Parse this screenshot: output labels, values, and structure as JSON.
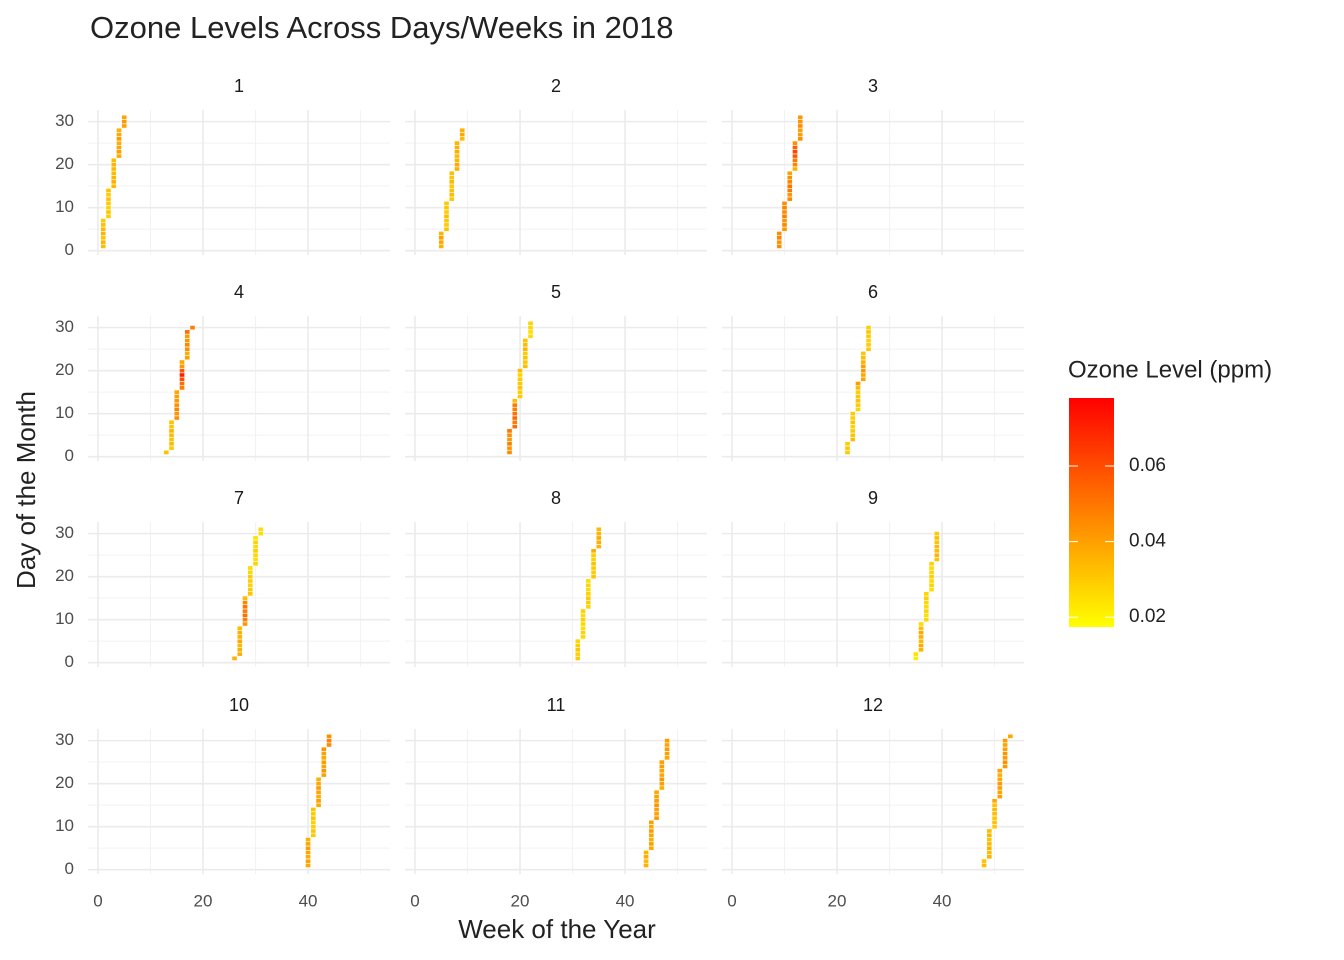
{
  "chart_data": {
    "type": "heatmap",
    "title": "Ozone Levels Across Days/Weeks in 2018",
    "x_label": "Week of the Year",
    "y_label": "Day of the Month",
    "legend_title": "Ozone Level (ppm)",
    "color_low": "#ffff00",
    "color_high": "#ff0000",
    "colorlim": [
      0.0174,
      0.078
    ],
    "colorticks": [
      0.02,
      0.04,
      0.06
    ],
    "xlim": [
      -1.9,
      55.6
    ],
    "xticks": [
      0,
      20,
      40
    ],
    "xminor": [
      10,
      30,
      50
    ],
    "ylim": [
      -1,
      32.7
    ],
    "yticks": [
      0,
      10,
      20,
      30
    ],
    "yminor": [
      5,
      15,
      25
    ],
    "grid": true,
    "panels": [
      {
        "title": "1",
        "x": [
          1,
          1,
          1,
          1,
          1,
          1,
          1,
          2,
          2,
          2,
          2,
          2,
          2,
          2,
          3,
          3,
          3,
          3,
          3,
          3,
          3,
          4,
          4,
          4,
          4,
          4,
          4,
          4,
          5,
          5,
          5
        ],
        "y": [
          1,
          2,
          3,
          4,
          5,
          6,
          7,
          8,
          9,
          10,
          11,
          12,
          13,
          14,
          15,
          16,
          17,
          18,
          19,
          20,
          21,
          22,
          23,
          24,
          25,
          26,
          27,
          28,
          29,
          30,
          31
        ],
        "values": [
          0.033,
          0.035,
          0.031,
          0.036,
          0.034,
          0.032,
          0.03,
          0.029,
          0.031,
          0.028,
          0.03,
          0.032,
          0.029,
          0.031,
          0.034,
          0.036,
          0.035,
          0.033,
          0.034,
          0.035,
          0.033,
          0.038,
          0.04,
          0.039,
          0.037,
          0.041,
          0.038,
          0.036,
          0.04,
          0.042,
          0.039
        ]
      },
      {
        "title": "2",
        "x": [
          5,
          5,
          5,
          5,
          6,
          6,
          6,
          6,
          6,
          6,
          6,
          7,
          7,
          7,
          7,
          7,
          7,
          7,
          8,
          8,
          8,
          8,
          8,
          8,
          8,
          9,
          9,
          9
        ],
        "y": [
          1,
          2,
          3,
          4,
          5,
          6,
          7,
          8,
          9,
          10,
          11,
          12,
          13,
          14,
          15,
          16,
          17,
          18,
          19,
          20,
          21,
          22,
          23,
          24,
          25,
          26,
          27,
          28
        ],
        "values": [
          0.036,
          0.038,
          0.04,
          0.035,
          0.032,
          0.03,
          0.031,
          0.033,
          0.029,
          0.031,
          0.03,
          0.031,
          0.033,
          0.032,
          0.03,
          0.034,
          0.031,
          0.033,
          0.036,
          0.038,
          0.035,
          0.034,
          0.037,
          0.036,
          0.035,
          0.033,
          0.038,
          0.036
        ]
      },
      {
        "title": "3",
        "x": [
          9,
          9,
          9,
          9,
          10,
          10,
          10,
          10,
          10,
          10,
          10,
          11,
          11,
          11,
          11,
          11,
          11,
          11,
          12,
          12,
          12,
          12,
          12,
          12,
          12,
          13,
          13,
          13,
          13,
          13,
          13
        ],
        "y": [
          1,
          2,
          3,
          4,
          5,
          6,
          7,
          8,
          9,
          10,
          11,
          12,
          13,
          14,
          15,
          16,
          17,
          18,
          19,
          20,
          21,
          22,
          23,
          24,
          25,
          26,
          27,
          28,
          29,
          30,
          31
        ],
        "values": [
          0.045,
          0.043,
          0.047,
          0.044,
          0.042,
          0.046,
          0.043,
          0.048,
          0.045,
          0.047,
          0.044,
          0.046,
          0.042,
          0.049,
          0.051,
          0.046,
          0.044,
          0.04,
          0.036,
          0.046,
          0.05,
          0.058,
          0.062,
          0.055,
          0.043,
          0.044,
          0.041,
          0.04,
          0.045,
          0.043,
          0.042
        ]
      },
      {
        "title": "4",
        "x": [
          13,
          14,
          14,
          14,
          14,
          14,
          14,
          14,
          15,
          15,
          15,
          15,
          15,
          15,
          15,
          16,
          16,
          16,
          16,
          16,
          16,
          16,
          17,
          17,
          17,
          17,
          17,
          17,
          17,
          18
        ],
        "y": [
          1,
          2,
          3,
          4,
          5,
          6,
          7,
          8,
          9,
          10,
          11,
          12,
          13,
          14,
          15,
          16,
          17,
          18,
          19,
          20,
          21,
          22,
          23,
          24,
          25,
          26,
          27,
          28,
          29,
          30
        ],
        "values": [
          0.032,
          0.03,
          0.034,
          0.031,
          0.033,
          0.035,
          0.031,
          0.032,
          0.045,
          0.043,
          0.047,
          0.044,
          0.042,
          0.04,
          0.038,
          0.048,
          0.052,
          0.06,
          0.071,
          0.058,
          0.042,
          0.038,
          0.04,
          0.037,
          0.044,
          0.046,
          0.043,
          0.041,
          0.052,
          0.048
        ]
      },
      {
        "title": "5",
        "x": [
          18,
          18,
          18,
          18,
          18,
          18,
          19,
          19,
          19,
          19,
          19,
          19,
          19,
          20,
          20,
          20,
          20,
          20,
          20,
          20,
          21,
          21,
          21,
          21,
          21,
          21,
          21,
          22,
          22,
          22,
          22
        ],
        "y": [
          1,
          2,
          3,
          4,
          5,
          6,
          7,
          8,
          9,
          10,
          11,
          12,
          13,
          14,
          15,
          16,
          17,
          18,
          19,
          20,
          21,
          22,
          23,
          24,
          25,
          26,
          27,
          28,
          29,
          30,
          31
        ],
        "values": [
          0.045,
          0.043,
          0.048,
          0.042,
          0.044,
          0.05,
          0.052,
          0.049,
          0.054,
          0.051,
          0.048,
          0.05,
          0.033,
          0.03,
          0.029,
          0.032,
          0.031,
          0.03,
          0.028,
          0.034,
          0.033,
          0.031,
          0.032,
          0.03,
          0.035,
          0.033,
          0.032,
          0.026,
          0.025,
          0.027,
          0.028
        ]
      },
      {
        "title": "6",
        "x": [
          22,
          22,
          22,
          23,
          23,
          23,
          23,
          23,
          23,
          23,
          24,
          24,
          24,
          24,
          24,
          24,
          24,
          25,
          25,
          25,
          25,
          25,
          25,
          25,
          26,
          26,
          26,
          26,
          26,
          26
        ],
        "y": [
          1,
          2,
          3,
          4,
          5,
          6,
          7,
          8,
          9,
          10,
          11,
          12,
          13,
          14,
          15,
          16,
          17,
          18,
          19,
          20,
          21,
          22,
          23,
          24,
          25,
          26,
          27,
          28,
          29,
          30
        ],
        "values": [
          0.03,
          0.031,
          0.029,
          0.033,
          0.032,
          0.03,
          0.028,
          0.031,
          0.029,
          0.03,
          0.027,
          0.03,
          0.032,
          0.031,
          0.029,
          0.033,
          0.041,
          0.039,
          0.038,
          0.042,
          0.04,
          0.036,
          0.033,
          0.031,
          0.03,
          0.029,
          0.028,
          0.03,
          0.031,
          0.029
        ]
      },
      {
        "title": "7",
        "x": [
          26,
          27,
          27,
          27,
          27,
          27,
          27,
          27,
          28,
          28,
          28,
          28,
          28,
          28,
          28,
          29,
          29,
          29,
          29,
          29,
          29,
          29,
          30,
          30,
          30,
          30,
          30,
          30,
          30,
          31,
          31
        ],
        "y": [
          1,
          2,
          3,
          4,
          5,
          6,
          7,
          8,
          9,
          10,
          11,
          12,
          13,
          14,
          15,
          16,
          17,
          18,
          19,
          20,
          21,
          22,
          23,
          24,
          25,
          26,
          27,
          28,
          29,
          30,
          31
        ],
        "values": [
          0.035,
          0.037,
          0.036,
          0.034,
          0.038,
          0.035,
          0.036,
          0.033,
          0.042,
          0.048,
          0.052,
          0.049,
          0.05,
          0.046,
          0.033,
          0.031,
          0.03,
          0.028,
          0.029,
          0.03,
          0.027,
          0.026,
          0.028,
          0.025,
          0.027,
          0.029,
          0.026,
          0.028,
          0.024,
          0.025,
          0.026
        ]
      },
      {
        "title": "8",
        "x": [
          31,
          31,
          31,
          31,
          31,
          32,
          32,
          32,
          32,
          32,
          32,
          32,
          33,
          33,
          33,
          33,
          33,
          33,
          33,
          34,
          34,
          34,
          34,
          34,
          34,
          34,
          35,
          35,
          35,
          35,
          35
        ],
        "y": [
          1,
          2,
          3,
          4,
          5,
          6,
          7,
          8,
          9,
          10,
          11,
          12,
          13,
          14,
          15,
          16,
          17,
          18,
          19,
          20,
          21,
          22,
          23,
          24,
          25,
          26,
          27,
          28,
          29,
          30,
          31
        ],
        "values": [
          0.03,
          0.028,
          0.031,
          0.029,
          0.027,
          0.026,
          0.028,
          0.025,
          0.027,
          0.029,
          0.026,
          0.028,
          0.027,
          0.029,
          0.03,
          0.028,
          0.026,
          0.027,
          0.025,
          0.031,
          0.029,
          0.03,
          0.032,
          0.028,
          0.029,
          0.037,
          0.035,
          0.036,
          0.038,
          0.035,
          0.034
        ]
      },
      {
        "title": "9",
        "x": [
          35,
          35,
          36,
          36,
          36,
          36,
          36,
          36,
          36,
          37,
          37,
          37,
          37,
          37,
          37,
          37,
          38,
          38,
          38,
          38,
          38,
          38,
          38,
          39,
          39,
          39,
          39,
          39,
          39,
          39
        ],
        "y": [
          1,
          2,
          3,
          4,
          5,
          6,
          7,
          8,
          9,
          10,
          11,
          12,
          13,
          14,
          15,
          16,
          17,
          18,
          19,
          20,
          21,
          22,
          23,
          24,
          25,
          26,
          27,
          28,
          29,
          30
        ],
        "values": [
          0.022,
          0.024,
          0.035,
          0.037,
          0.034,
          0.036,
          0.038,
          0.033,
          0.026,
          0.027,
          0.025,
          0.028,
          0.026,
          0.027,
          0.029,
          0.027,
          0.025,
          0.028,
          0.026,
          0.029,
          0.027,
          0.026,
          0.028,
          0.032,
          0.035,
          0.033,
          0.034,
          0.031,
          0.033,
          0.03
        ]
      },
      {
        "title": "10",
        "x": [
          40,
          40,
          40,
          40,
          40,
          40,
          40,
          41,
          41,
          41,
          41,
          41,
          41,
          41,
          42,
          42,
          42,
          42,
          42,
          42,
          42,
          43,
          43,
          43,
          43,
          43,
          43,
          43,
          44,
          44,
          44
        ],
        "y": [
          1,
          2,
          3,
          4,
          5,
          6,
          7,
          8,
          9,
          10,
          11,
          12,
          13,
          14,
          15,
          16,
          17,
          18,
          19,
          20,
          21,
          22,
          23,
          24,
          25,
          26,
          27,
          28,
          29,
          30,
          31
        ],
        "values": [
          0.038,
          0.04,
          0.037,
          0.039,
          0.041,
          0.038,
          0.036,
          0.03,
          0.031,
          0.029,
          0.028,
          0.032,
          0.03,
          0.031,
          0.038,
          0.04,
          0.037,
          0.039,
          0.041,
          0.038,
          0.036,
          0.04,
          0.042,
          0.039,
          0.041,
          0.038,
          0.04,
          0.043,
          0.045,
          0.047,
          0.044
        ]
      },
      {
        "title": "11",
        "x": [
          44,
          44,
          44,
          44,
          45,
          45,
          45,
          45,
          45,
          45,
          45,
          46,
          46,
          46,
          46,
          46,
          46,
          46,
          47,
          47,
          47,
          47,
          47,
          47,
          47,
          48,
          48,
          48,
          48,
          48
        ],
        "y": [
          1,
          2,
          3,
          4,
          5,
          6,
          7,
          8,
          9,
          10,
          11,
          12,
          13,
          14,
          15,
          16,
          17,
          18,
          19,
          20,
          21,
          22,
          23,
          24,
          25,
          26,
          27,
          28,
          29,
          30
        ],
        "values": [
          0.036,
          0.034,
          0.037,
          0.035,
          0.038,
          0.04,
          0.037,
          0.039,
          0.041,
          0.038,
          0.04,
          0.042,
          0.039,
          0.04,
          0.043,
          0.041,
          0.04,
          0.038,
          0.037,
          0.04,
          0.042,
          0.038,
          0.039,
          0.041,
          0.04,
          0.038,
          0.04,
          0.042,
          0.039,
          0.041
        ]
      },
      {
        "title": "12",
        "x": [
          48,
          48,
          49,
          49,
          49,
          49,
          49,
          49,
          49,
          50,
          50,
          50,
          50,
          50,
          50,
          50,
          51,
          51,
          51,
          51,
          51,
          51,
          51,
          52,
          52,
          52,
          52,
          52,
          52,
          52,
          53
        ],
        "y": [
          1,
          2,
          3,
          4,
          5,
          6,
          7,
          8,
          9,
          10,
          11,
          12,
          13,
          14,
          15,
          16,
          17,
          18,
          19,
          20,
          21,
          22,
          23,
          24,
          25,
          26,
          27,
          28,
          29,
          30,
          31
        ],
        "values": [
          0.033,
          0.031,
          0.035,
          0.033,
          0.036,
          0.034,
          0.032,
          0.035,
          0.033,
          0.03,
          0.032,
          0.031,
          0.033,
          0.034,
          0.032,
          0.038,
          0.041,
          0.039,
          0.04,
          0.042,
          0.038,
          0.037,
          0.04,
          0.042,
          0.044,
          0.041,
          0.043,
          0.04,
          0.039,
          0.041,
          0.038
        ]
      }
    ]
  }
}
